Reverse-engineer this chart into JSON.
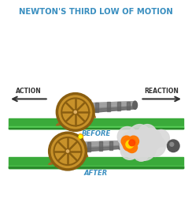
{
  "title": "NEWTON'S THIRD LOW OF MOTION",
  "title_color": "#3a8fc0",
  "title_fontsize": 7.2,
  "background_color": "#ffffff",
  "before_label": "BEFORE",
  "after_label": "AFTER",
  "action_label": "ACTION",
  "reaction_label": "REACTION",
  "label_color": "#3a8fc0",
  "label_fontsize": 6.0,
  "ground_color": "#3aaa3a",
  "ground_dark": "#2a8a2a",
  "ground_light": "#55cc55",
  "cannon_barrel_color": "#909090",
  "cannon_barrel_dark": "#606060",
  "cannon_wheel_color": "#c8922a",
  "cannon_wheel_dark": "#8a5e10",
  "cannon_frame_color": "#a06820",
  "cannon_frame_dark": "#7a4e10",
  "smoke_color": "#d8d8d8",
  "fire_orange": "#ff7700",
  "fire_yellow": "#ffdd00",
  "ball_color": "#555555",
  "arrow_color": "#333333",
  "text_color": "#333333"
}
